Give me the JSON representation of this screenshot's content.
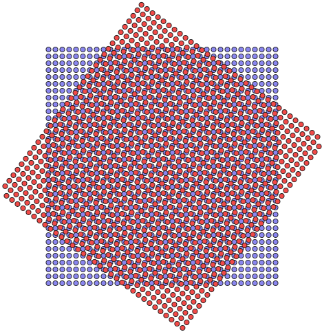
{
  "figure": {
    "description_visible_text": "",
    "background_color": "#ffffff",
    "lattices": [
      {
        "name": "blue-lattice",
        "fill_color": "#8a86ee",
        "stroke_color": "#1a1a1a",
        "shape": "square-grid",
        "columns": 34,
        "rows": 35,
        "rotation_deg": 0
      },
      {
        "name": "red-lattice",
        "fill_color": "#f04a48",
        "stroke_color": "#1a1a1a",
        "shape": "square-grid",
        "columns": 34,
        "rows": 35,
        "rotation_deg": 36.9
      }
    ],
    "layer_order": [
      "blue-lattice",
      "red-lattice"
    ]
  }
}
